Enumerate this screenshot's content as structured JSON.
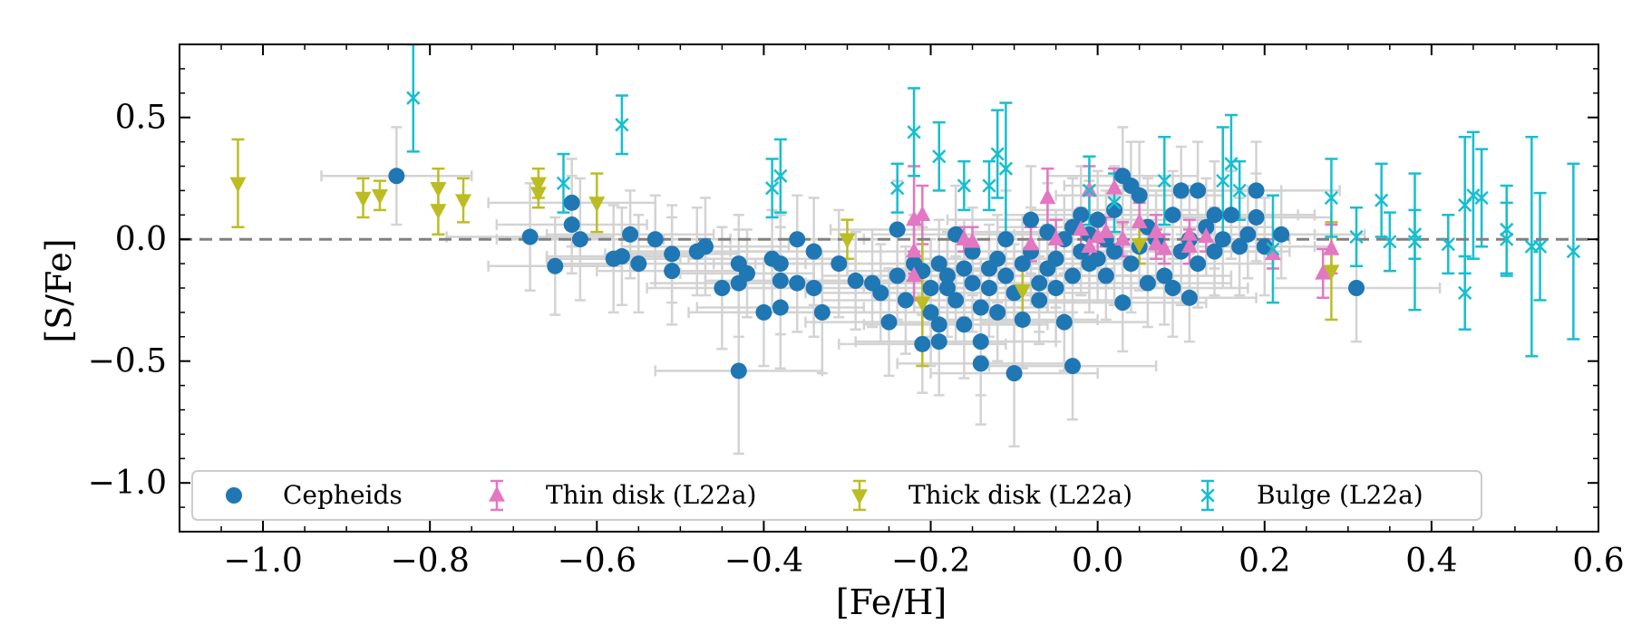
{
  "chart_data": {
    "type": "scatter",
    "xlabel": "[Fe/H]",
    "ylabel": "[S/Fe]",
    "xlim": [
      -1.1,
      0.6
    ],
    "ylim": [
      -1.2,
      0.8
    ],
    "x_ticks": [
      -1.0,
      -0.8,
      -0.6,
      -0.4,
      -0.2,
      0.0,
      0.2,
      0.4,
      0.6
    ],
    "x_tick_labels": [
      "−1.0",
      "−0.8",
      "−0.6",
      "−0.4",
      "−0.2",
      "0.0",
      "0.2",
      "0.4",
      "0.6"
    ],
    "y_ticks": [
      -1.0,
      -0.5,
      0.0,
      0.5
    ],
    "y_tick_labels": [
      "−1.0",
      "−0.5",
      "0.0",
      "0.5"
    ],
    "reference_line": {
      "y": 0.0,
      "style": "dashed",
      "color": "#808080"
    },
    "legend": {
      "placement": "lower-left",
      "entries": [
        {
          "label": "Cepheids",
          "marker": "circle",
          "color": "#1f77b4"
        },
        {
          "label": "Thin disk (L22a)",
          "marker": "triangle-up",
          "color": "#e377c2"
        },
        {
          "label": "Thick disk (L22a)",
          "marker": "triangle-down",
          "color": "#bcbd22"
        },
        {
          "label": "Bulge (L22a)",
          "marker": "x",
          "color": "#17becf"
        }
      ]
    },
    "series": [
      {
        "name": "Cepheids",
        "marker": "circle",
        "color": "#1f77b4",
        "errorbar_color": "#d3d3d3",
        "points": [
          [
            -0.84,
            0.26,
            0.09,
            0.2
          ],
          [
            -0.68,
            0.01,
            0.1,
            0.22
          ],
          [
            -0.65,
            -0.11,
            0.08,
            0.2
          ],
          [
            -0.63,
            0.15,
            0.1,
            0.18
          ],
          [
            -0.63,
            0.06,
            0.09,
            0.2
          ],
          [
            -0.62,
            0.0,
            0.1,
            0.25
          ],
          [
            -0.58,
            -0.08,
            0.08,
            0.22
          ],
          [
            -0.57,
            -0.07,
            0.09,
            0.2
          ],
          [
            -0.56,
            0.02,
            0.1,
            0.18
          ],
          [
            -0.55,
            -0.1,
            0.1,
            0.2
          ],
          [
            -0.53,
            0.0,
            0.09,
            0.18
          ],
          [
            -0.51,
            -0.06,
            0.08,
            0.2
          ],
          [
            -0.51,
            -0.13,
            0.09,
            0.22
          ],
          [
            -0.48,
            -0.05,
            0.1,
            0.18
          ],
          [
            -0.47,
            -0.03,
            0.1,
            0.2
          ],
          [
            -0.45,
            -0.2,
            0.09,
            0.25
          ],
          [
            -0.43,
            -0.1,
            0.08,
            0.2
          ],
          [
            -0.43,
            -0.18,
            0.1,
            0.22
          ],
          [
            -0.42,
            -0.14,
            0.08,
            0.18
          ],
          [
            -0.43,
            -0.54,
            0.1,
            0.34
          ],
          [
            -0.4,
            -0.3,
            0.09,
            0.22
          ],
          [
            -0.39,
            -0.08,
            0.1,
            0.2
          ],
          [
            -0.38,
            -0.1,
            0.08,
            0.2
          ],
          [
            -0.38,
            -0.17,
            0.09,
            0.22
          ],
          [
            -0.38,
            -0.28,
            0.1,
            0.25
          ],
          [
            -0.36,
            0.0,
            0.08,
            0.18
          ],
          [
            -0.36,
            -0.18,
            0.09,
            0.2
          ],
          [
            -0.34,
            -0.05,
            0.1,
            0.22
          ],
          [
            -0.34,
            -0.2,
            0.09,
            0.2
          ],
          [
            -0.33,
            -0.3,
            0.1,
            0.25
          ],
          [
            -0.31,
            -0.1,
            0.1,
            0.22
          ],
          [
            -0.29,
            -0.17,
            0.09,
            0.2
          ],
          [
            -0.27,
            -0.18,
            0.08,
            0.18
          ],
          [
            -0.26,
            -0.22,
            0.09,
            0.2
          ],
          [
            -0.25,
            -0.34,
            0.1,
            0.22
          ],
          [
            -0.24,
            0.04,
            0.08,
            0.2
          ],
          [
            -0.24,
            -0.15,
            0.09,
            0.18
          ],
          [
            -0.23,
            -0.25,
            0.1,
            0.22
          ],
          [
            -0.22,
            -0.1,
            0.08,
            0.2
          ],
          [
            -0.21,
            -0.43,
            0.1,
            0.2
          ],
          [
            -0.21,
            -0.13,
            0.09,
            0.18
          ],
          [
            -0.2,
            -0.2,
            0.08,
            0.2
          ],
          [
            -0.2,
            -0.3,
            0.09,
            0.22
          ],
          [
            -0.19,
            -0.1,
            0.1,
            0.18
          ],
          [
            -0.19,
            -0.35,
            0.09,
            0.2
          ],
          [
            -0.19,
            -0.42,
            0.1,
            0.22
          ],
          [
            -0.18,
            -0.15,
            0.08,
            0.18
          ],
          [
            -0.18,
            -0.2,
            0.09,
            0.2
          ],
          [
            -0.17,
            0.02,
            0.1,
            0.2
          ],
          [
            -0.17,
            -0.25,
            0.09,
            0.18
          ],
          [
            -0.16,
            -0.12,
            0.08,
            0.2
          ],
          [
            -0.16,
            -0.35,
            0.1,
            0.22
          ],
          [
            -0.15,
            -0.05,
            0.09,
            0.18
          ],
          [
            -0.15,
            -0.18,
            0.1,
            0.2
          ],
          [
            -0.14,
            -0.28,
            0.08,
            0.2
          ],
          [
            -0.14,
            -0.51,
            0.1,
            0.25
          ],
          [
            -0.14,
            -0.42,
            0.09,
            0.22
          ],
          [
            -0.13,
            -0.12,
            0.08,
            0.18
          ],
          [
            -0.13,
            -0.2,
            0.09,
            0.2
          ],
          [
            -0.12,
            -0.08,
            0.1,
            0.18
          ],
          [
            -0.12,
            -0.3,
            0.09,
            0.2
          ],
          [
            -0.11,
            0.0,
            0.08,
            0.2
          ],
          [
            -0.11,
            -0.15,
            0.1,
            0.18
          ],
          [
            -0.1,
            -0.55,
            0.1,
            0.3
          ],
          [
            -0.1,
            -0.22,
            0.09,
            0.2
          ],
          [
            -0.09,
            -0.1,
            0.08,
            0.18
          ],
          [
            -0.09,
            -0.33,
            0.09,
            0.2
          ],
          [
            -0.08,
            0.08,
            0.1,
            0.22
          ],
          [
            -0.08,
            -0.05,
            0.09,
            0.18
          ],
          [
            -0.07,
            -0.18,
            0.08,
            0.2
          ],
          [
            -0.07,
            -0.25,
            0.1,
            0.18
          ],
          [
            -0.06,
            0.03,
            0.09,
            0.2
          ],
          [
            -0.06,
            -0.12,
            0.08,
            0.18
          ],
          [
            -0.05,
            -0.08,
            0.1,
            0.2
          ],
          [
            -0.05,
            -0.2,
            0.09,
            0.22
          ],
          [
            -0.04,
            0.0,
            0.08,
            0.18
          ],
          [
            -0.04,
            -0.34,
            0.1,
            0.2
          ],
          [
            -0.03,
            0.05,
            0.09,
            0.2
          ],
          [
            -0.03,
            -0.15,
            0.08,
            0.18
          ],
          [
            -0.03,
            -0.52,
            0.1,
            0.22
          ],
          [
            -0.02,
            0.1,
            0.09,
            0.2
          ],
          [
            -0.02,
            -0.05,
            0.08,
            0.18
          ],
          [
            -0.01,
            -0.1,
            0.1,
            0.2
          ],
          [
            -0.01,
            0.02,
            0.09,
            0.22
          ],
          [
            0.0,
            -0.08,
            0.08,
            0.18
          ],
          [
            0.0,
            0.08,
            0.09,
            0.2
          ],
          [
            0.01,
            -0.15,
            0.1,
            0.18
          ],
          [
            0.01,
            0.0,
            0.09,
            0.2
          ],
          [
            0.02,
            -0.05,
            0.08,
            0.22
          ],
          [
            0.02,
            0.12,
            0.1,
            0.18
          ],
          [
            0.03,
            0.26,
            0.09,
            0.2
          ],
          [
            0.03,
            -0.26,
            0.1,
            0.2
          ],
          [
            0.04,
            0.22,
            0.08,
            0.18
          ],
          [
            0.04,
            -0.1,
            0.09,
            0.2
          ],
          [
            0.05,
            0.18,
            0.1,
            0.22
          ],
          [
            0.05,
            -0.03,
            0.08,
            0.18
          ],
          [
            0.06,
            0.05,
            0.09,
            0.2
          ],
          [
            0.06,
            -0.18,
            0.1,
            0.18
          ],
          [
            0.07,
            0.0,
            0.09,
            0.2
          ],
          [
            0.08,
            -0.15,
            0.08,
            0.2
          ],
          [
            0.09,
            0.1,
            0.1,
            0.18
          ],
          [
            0.09,
            -0.2,
            0.09,
            0.2
          ],
          [
            0.1,
            0.2,
            0.08,
            0.18
          ],
          [
            0.1,
            -0.05,
            0.1,
            0.22
          ],
          [
            0.11,
            0.0,
            0.09,
            0.2
          ],
          [
            0.11,
            -0.24,
            0.08,
            0.18
          ],
          [
            0.12,
            0.2,
            0.1,
            0.2
          ],
          [
            0.12,
            -0.1,
            0.09,
            0.18
          ],
          [
            0.13,
            0.05,
            0.08,
            0.2
          ],
          [
            0.14,
            0.1,
            0.1,
            0.22
          ],
          [
            0.14,
            -0.05,
            0.09,
            0.18
          ],
          [
            0.15,
            0.0,
            0.08,
            0.2
          ],
          [
            0.16,
            0.1,
            0.1,
            0.18
          ],
          [
            0.17,
            -0.03,
            0.09,
            0.2
          ],
          [
            0.18,
            0.02,
            0.08,
            0.18
          ],
          [
            0.19,
            0.2,
            0.1,
            0.2
          ],
          [
            0.19,
            0.09,
            0.09,
            0.18
          ],
          [
            0.2,
            -0.03,
            0.08,
            0.2
          ],
          [
            0.22,
            0.02,
            0.1,
            0.18
          ],
          [
            0.31,
            -0.2,
            0.1,
            0.22
          ]
        ]
      },
      {
        "name": "Thin disk (L22a)",
        "marker": "triangle-up",
        "color": "#e377c2",
        "points": [
          [
            -0.22,
            0.08,
            0.22
          ],
          [
            -0.21,
            0.1,
            0.12
          ],
          [
            -0.22,
            -0.05,
            0.12
          ],
          [
            -0.22,
            -0.15,
            0.1
          ],
          [
            -0.16,
            0.0,
            0.05
          ],
          [
            -0.15,
            -0.01,
            0.06
          ],
          [
            -0.08,
            -0.02,
            0.07
          ],
          [
            -0.06,
            0.17,
            0.12
          ],
          [
            -0.05,
            0.0,
            0.08
          ],
          [
            -0.02,
            0.04,
            0.08
          ],
          [
            -0.01,
            0.2,
            0.1
          ],
          [
            -0.01,
            -0.03,
            0.07
          ],
          [
            0.0,
            0.01,
            0.07
          ],
          [
            0.01,
            0.03,
            0.06
          ],
          [
            0.02,
            0.21,
            0.08
          ],
          [
            0.03,
            0.0,
            0.07
          ],
          [
            0.05,
            0.07,
            0.08
          ],
          [
            0.07,
            0.03,
            0.07
          ],
          [
            0.07,
            -0.02,
            0.06
          ],
          [
            0.08,
            -0.04,
            0.06
          ],
          [
            0.11,
            0.02,
            0.06
          ],
          [
            0.11,
            -0.03,
            0.07
          ],
          [
            0.13,
            0.01,
            0.06
          ],
          [
            0.21,
            -0.06,
            0.06
          ],
          [
            0.27,
            -0.14,
            0.1
          ],
          [
            0.28,
            -0.04,
            0.1
          ]
        ]
      },
      {
        "name": "Thick disk (L22a)",
        "marker": "triangle-down",
        "color": "#bcbd22",
        "points": [
          [
            -1.03,
            0.23,
            0.18
          ],
          [
            -0.88,
            0.17,
            0.08
          ],
          [
            -0.86,
            0.18,
            0.06
          ],
          [
            -0.79,
            0.21,
            0.08
          ],
          [
            -0.79,
            0.12,
            0.1
          ],
          [
            -0.76,
            0.16,
            0.09
          ],
          [
            -0.67,
            0.23,
            0.06
          ],
          [
            -0.67,
            0.19,
            0.06
          ],
          [
            -0.6,
            0.15,
            0.12
          ],
          [
            -0.3,
            0.0,
            0.08
          ],
          [
            -0.21,
            -0.26,
            0.26
          ],
          [
            -0.09,
            -0.21,
            0.13
          ],
          [
            0.05,
            -0.02,
            0.08
          ],
          [
            0.28,
            -0.13,
            0.2
          ]
        ]
      },
      {
        "name": "Bulge (L22a)",
        "marker": "x",
        "color": "#17becf",
        "points": [
          [
            -0.82,
            0.58,
            0.22
          ],
          [
            -0.64,
            0.23,
            0.12
          ],
          [
            -0.57,
            0.47,
            0.12
          ],
          [
            -0.39,
            0.21,
            0.12
          ],
          [
            -0.38,
            0.26,
            0.15
          ],
          [
            -0.24,
            0.21,
            0.1
          ],
          [
            -0.22,
            0.44,
            0.18
          ],
          [
            -0.19,
            0.34,
            0.14
          ],
          [
            -0.16,
            0.22,
            0.1
          ],
          [
            -0.13,
            0.22,
            0.1
          ],
          [
            -0.12,
            0.35,
            0.18
          ],
          [
            -0.11,
            0.29,
            0.27
          ],
          [
            -0.01,
            0.2,
            0.14
          ],
          [
            0.02,
            0.15,
            0.12
          ],
          [
            0.08,
            0.24,
            0.18
          ],
          [
            0.15,
            0.24,
            0.22
          ],
          [
            0.16,
            0.31,
            0.2
          ],
          [
            0.17,
            0.2,
            0.12
          ],
          [
            0.21,
            -0.04,
            0.22
          ],
          [
            0.28,
            0.17,
            0.16
          ],
          [
            0.31,
            0.01,
            0.12
          ],
          [
            0.34,
            0.16,
            0.15
          ],
          [
            0.35,
            -0.01,
            0.12
          ],
          [
            0.38,
            0.02,
            0.1
          ],
          [
            0.38,
            -0.01,
            0.28
          ],
          [
            0.42,
            -0.02,
            0.12
          ],
          [
            0.44,
            0.14,
            0.28
          ],
          [
            0.44,
            -0.22,
            0.15
          ],
          [
            0.45,
            0.18,
            0.26
          ],
          [
            0.46,
            0.17,
            0.2
          ],
          [
            0.49,
            0.04,
            0.18
          ],
          [
            0.49,
            0.0,
            0.15
          ],
          [
            0.52,
            -0.03,
            0.45
          ],
          [
            0.53,
            -0.03,
            0.22
          ],
          [
            0.57,
            -0.05,
            0.36
          ]
        ]
      }
    ]
  }
}
